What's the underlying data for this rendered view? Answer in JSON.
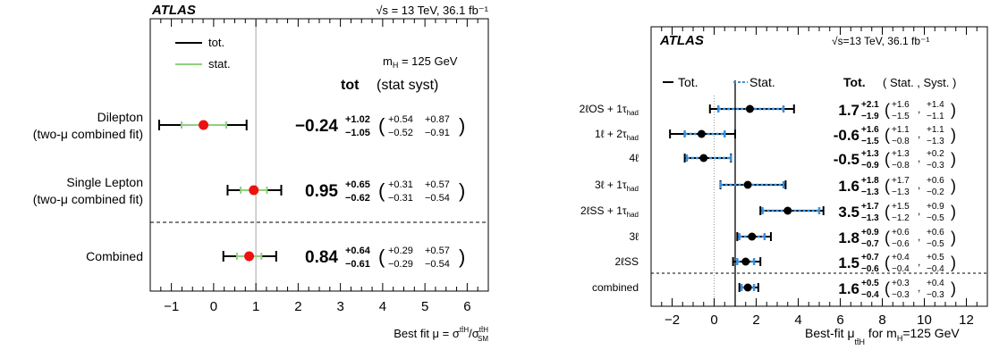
{
  "chart_data": [
    {
      "type": "scatter",
      "orientation": "horizontal",
      "experiment": "ATLAS",
      "energy_label": "√s = 13 TeV, 36.1 fb⁻¹",
      "mass_label": "m_H = 125 GeV",
      "legend": [
        {
          "name": "tot.",
          "color": "#000000"
        },
        {
          "name": "stat.",
          "color": "#8fcf7f"
        }
      ],
      "header": {
        "tot": "tot",
        "breakdown": "(stat syst)"
      },
      "xlabel": "Best fit μ = σ^ttH/σ^ttH_SM",
      "xlim": [
        -1.5,
        6.5
      ],
      "xticks": [
        -1,
        0,
        1,
        2,
        3,
        4,
        5,
        6
      ],
      "reference_line": 1,
      "point_color": "#ee1111",
      "categories": [
        "Dilepton (two-μ combined fit)",
        "Single Lepton (two-μ combined fit)",
        "Combined"
      ],
      "rows": [
        {
          "label": [
            "Dilepton",
            "(two-μ combined fit)"
          ],
          "value": -0.24,
          "display": "−0.24",
          "tot_up": "+1.02",
          "tot_dn": "−1.05",
          "stat_up": "+0.54",
          "stat_dn": "−0.52",
          "syst_up": "+0.87",
          "syst_dn": "−0.91"
        },
        {
          "label": [
            "Single Lepton",
            "(two-μ combined fit)"
          ],
          "value": 0.95,
          "display": "0.95",
          "tot_up": "+0.65",
          "tot_dn": "−0.62",
          "stat_up": "+0.31",
          "stat_dn": "−0.31",
          "syst_up": "+0.57",
          "syst_dn": "−0.54"
        },
        {
          "label": [
            "Combined"
          ],
          "value": 0.84,
          "display": "0.84",
          "tot_up": "+0.64",
          "tot_dn": "−0.61",
          "stat_up": "+0.29",
          "stat_dn": "−0.29",
          "syst_up": "+0.57",
          "syst_dn": "−0.54"
        }
      ]
    },
    {
      "type": "scatter",
      "orientation": "horizontal",
      "experiment": "ATLAS",
      "energy_label": "√s=13 TeV, 36.1 fb⁻¹",
      "legend": [
        {
          "name": "Tot.",
          "color": "#000000"
        },
        {
          "name": "Stat.",
          "color": "#3a8fdc"
        }
      ],
      "header": {
        "tot": "Tot.",
        "breakdown": "( Stat. , Syst. )"
      },
      "xlabel": "Best-fit μ_ttH for m_H=125 GeV",
      "xlim": [
        -3,
        13
      ],
      "xticks": [
        -2,
        0,
        2,
        4,
        6,
        8,
        10,
        12
      ],
      "reference_line": 1,
      "zero_line": 0,
      "point_color": "#000000",
      "categories": [
        "2ℓOS + 1τhad",
        "1ℓ + 2τhad",
        "4ℓ",
        "3ℓ + 1τhad",
        "2ℓSS + 1τhad",
        "3ℓ",
        "2ℓSS",
        "combined"
      ],
      "rows": [
        {
          "label": "2ℓOS + 1τ",
          "sub": "had",
          "value": 1.7,
          "display": "1.7",
          "tot_up": "+2.1",
          "tot_dn": "−1.9",
          "stat_up": "+1.6",
          "stat_dn": "−1.5",
          "syst_up": "+1.4",
          "syst_dn": "−1.1"
        },
        {
          "label": "1ℓ + 2τ",
          "sub": "had",
          "value": -0.6,
          "display": "-0.6",
          "tot_up": "+1.6",
          "tot_dn": "−1.5",
          "stat_up": "+1.1",
          "stat_dn": "−0.8",
          "syst_up": "+1.1",
          "syst_dn": "−1.3"
        },
        {
          "label": "4ℓ",
          "sub": "",
          "value": -0.5,
          "display": "-0.5",
          "tot_up": "+1.3",
          "tot_dn": "−0.9",
          "stat_up": "+1.3",
          "stat_dn": "−0.8",
          "syst_up": "+0.2",
          "syst_dn": "−0.3"
        },
        {
          "label": "3ℓ + 1τ",
          "sub": "had",
          "value": 1.6,
          "display": "1.6",
          "tot_up": "+1.8",
          "tot_dn": "−1.3",
          "stat_up": "+1.7",
          "stat_dn": "−1.3",
          "syst_up": "+0.6",
          "syst_dn": "−0.2"
        },
        {
          "label": "2ℓSS + 1τ",
          "sub": "had",
          "value": 3.5,
          "display": "3.5",
          "tot_up": "+1.7",
          "tot_dn": "−1.3",
          "stat_up": "+1.5",
          "stat_dn": "−1.2",
          "syst_up": "+0.9",
          "syst_dn": "−0.5"
        },
        {
          "label": "3ℓ",
          "sub": "",
          "value": 1.8,
          "display": "1.8",
          "tot_up": "+0.9",
          "tot_dn": "−0.7",
          "stat_up": "+0.6",
          "stat_dn": "−0.6",
          "syst_up": "+0.6",
          "syst_dn": "−0.5"
        },
        {
          "label": "2ℓSS",
          "sub": "",
          "value": 1.5,
          "display": "1.5",
          "tot_up": "+0.7",
          "tot_dn": "−0.6",
          "stat_up": "+0.4",
          "stat_dn": "−0.4",
          "syst_up": "+0.5",
          "syst_dn": "−0.4"
        },
        {
          "label": "combined",
          "sub": "",
          "value": 1.6,
          "display": "1.6",
          "tot_up": "+0.5",
          "tot_dn": "−0.4",
          "stat_up": "+0.3",
          "stat_dn": "−0.3",
          "syst_up": "+0.4",
          "syst_dn": "−0.3"
        }
      ]
    }
  ]
}
